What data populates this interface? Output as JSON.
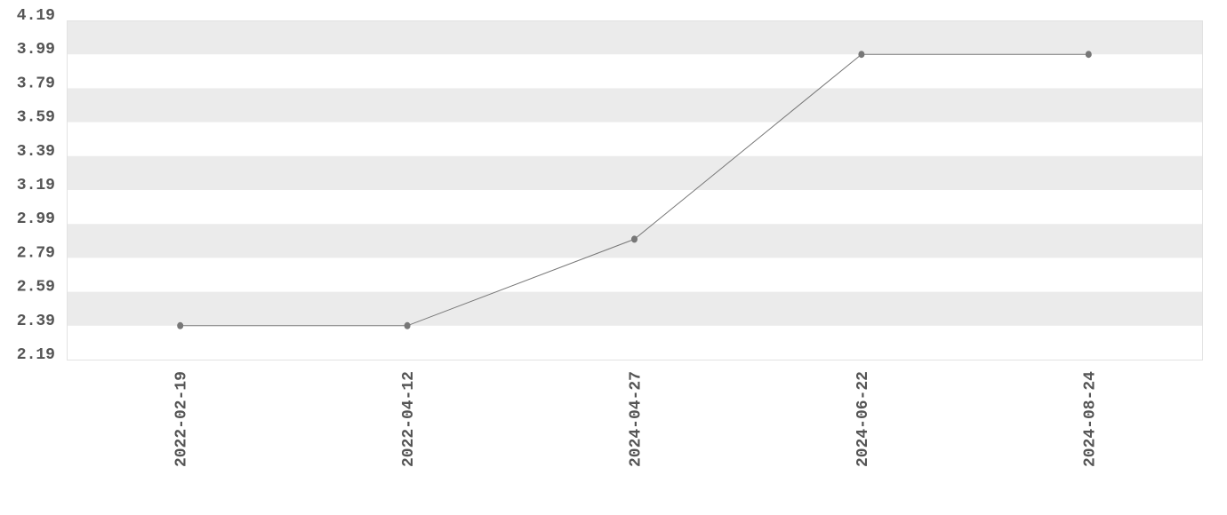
{
  "chart_data": {
    "type": "line",
    "title": "",
    "xlabel": "",
    "ylabel": "",
    "categories": [
      "2022-02-19",
      "2022-04-12",
      "2024-04-27",
      "2024-06-22",
      "2024-08-24"
    ],
    "series": [
      {
        "values": [
          2.39,
          2.39,
          2.9,
          3.99,
          3.99
        ]
      }
    ],
    "ylim": [
      2.19,
      4.19
    ],
    "yticks": [
      "2.19",
      "2.39",
      "2.59",
      "2.79",
      "2.99",
      "3.19",
      "3.39",
      "3.59",
      "3.79",
      "3.99",
      "4.19"
    ],
    "grid": "alternating horizontal bands",
    "legend": "none",
    "colors": {
      "line": "#777777",
      "marker": "#777777",
      "band": "#ebebeb",
      "tick_text": "#555555"
    }
  }
}
